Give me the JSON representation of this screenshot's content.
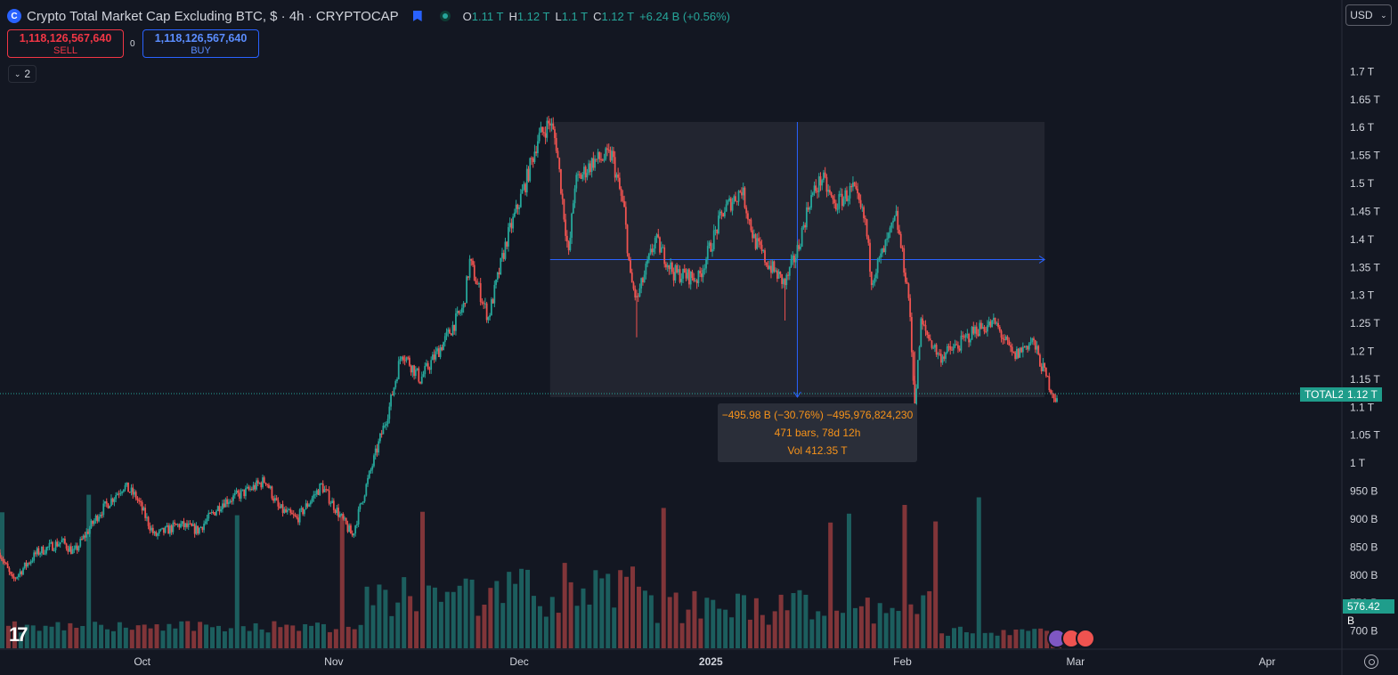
{
  "header": {
    "title": "Crypto Total Market Cap Excluding BTC, $ · 4h · CRYPTOCAP",
    "symbol_icon": "cryptocap-logo-icon",
    "ohlc": [
      {
        "key": "O",
        "value": "1.11 T"
      },
      {
        "key": "H",
        "value": "1.12 T"
      },
      {
        "key": "L",
        "value": "1.1 T"
      },
      {
        "key": "C",
        "value": "1.12 T"
      }
    ],
    "change": "+6.24 B (+0.56%)"
  },
  "trade": {
    "sell_price": "1,118,126,567,640",
    "sell_label": "SELL",
    "spread": "0",
    "buy_price": "1,118,126,567,640",
    "buy_label": "BUY"
  },
  "indicators_toggle": {
    "count": "2"
  },
  "currency": "USD",
  "measure": {
    "line1": "−495.98 B (−30.76%) −495,976,824,230",
    "line2": "471 bars, 78d 12h",
    "line3": "Vol 412.35 T"
  },
  "price_tag": {
    "symbol": "TOTAL2",
    "value": "1.12 T"
  },
  "volume_tag": "576.42 B",
  "colors": {
    "up": "#26a69a",
    "down": "#ef5350",
    "accent": "#2962ff",
    "measure_text": "#f7931a"
  },
  "chart_data": {
    "type": "candlestick",
    "title": "Crypto Total Market Cap Excluding BTC",
    "interval": "4h",
    "x_ticks": [
      "Oct",
      "Nov",
      "Dec",
      "2025",
      "Feb",
      "Mar",
      "Apr"
    ],
    "y_ticks": [
      "1.7 T",
      "1.65 T",
      "1.6 T",
      "1.55 T",
      "1.5 T",
      "1.45 T",
      "1.4 T",
      "1.35 T",
      "1.3 T",
      "1.25 T",
      "1.2 T",
      "1.15 T",
      "1.1 T",
      "1.05 T",
      "1 T",
      "950 B",
      "900 B",
      "850 B",
      "800 B",
      "750 B",
      "700 B"
    ],
    "y_range_T": [
      0.685,
      1.75
    ],
    "date_range": [
      "2024-09-08",
      "2025-02-26"
    ],
    "price_path": [
      {
        "date": "2024-09-08",
        "close": 0.84
      },
      {
        "date": "2024-09-10",
        "close": 0.79
      },
      {
        "date": "2024-09-14",
        "close": 0.84
      },
      {
        "date": "2024-09-18",
        "close": 0.86
      },
      {
        "date": "2024-09-20",
        "close": 0.84
      },
      {
        "date": "2024-09-24",
        "close": 0.91
      },
      {
        "date": "2024-09-28",
        "close": 0.96
      },
      {
        "date": "2024-09-30",
        "close": 0.94
      },
      {
        "date": "2024-10-03",
        "close": 0.87
      },
      {
        "date": "2024-10-07",
        "close": 0.89
      },
      {
        "date": "2024-10-10",
        "close": 0.88
      },
      {
        "date": "2024-10-14",
        "close": 0.93
      },
      {
        "date": "2024-10-18",
        "close": 0.95
      },
      {
        "date": "2024-10-21",
        "close": 0.97
      },
      {
        "date": "2024-10-23",
        "close": 0.92
      },
      {
        "date": "2024-10-26",
        "close": 0.9
      },
      {
        "date": "2024-10-30",
        "close": 0.96
      },
      {
        "date": "2024-11-04",
        "close": 0.87
      },
      {
        "date": "2024-11-06",
        "close": 0.95
      },
      {
        "date": "2024-11-10",
        "close": 1.1
      },
      {
        "date": "2024-11-12",
        "close": 1.2
      },
      {
        "date": "2024-11-15",
        "close": 1.15
      },
      {
        "date": "2024-11-19",
        "close": 1.22
      },
      {
        "date": "2024-11-22",
        "close": 1.28
      },
      {
        "date": "2024-11-23",
        "close": 1.36
      },
      {
        "date": "2024-11-26",
        "close": 1.26
      },
      {
        "date": "2024-11-29",
        "close": 1.4
      },
      {
        "date": "2024-12-02",
        "close": 1.5
      },
      {
        "date": "2024-12-04",
        "close": 1.58
      },
      {
        "date": "2024-12-06",
        "close": 1.61
      },
      {
        "date": "2024-12-07",
        "close": 1.57
      },
      {
        "date": "2024-12-09",
        "close": 1.37
      },
      {
        "date": "2024-12-10",
        "close": 1.5
      },
      {
        "date": "2024-12-13",
        "close": 1.54
      },
      {
        "date": "2024-12-16",
        "close": 1.55
      },
      {
        "date": "2024-12-18",
        "close": 1.45
      },
      {
        "date": "2024-12-19",
        "close": 1.33
      },
      {
        "date": "2024-12-20",
        "close": 1.29
      },
      {
        "date": "2024-12-23",
        "close": 1.4
      },
      {
        "date": "2024-12-26",
        "close": 1.34
      },
      {
        "date": "2024-12-30",
        "close": 1.33
      },
      {
        "date": "2025-01-03",
        "close": 1.45
      },
      {
        "date": "2025-01-06",
        "close": 1.49
      },
      {
        "date": "2025-01-08",
        "close": 1.4
      },
      {
        "date": "2025-01-10",
        "close": 1.36
      },
      {
        "date": "2025-01-13",
        "close": 1.32
      },
      {
        "date": "2025-01-15",
        "close": 1.38
      },
      {
        "date": "2025-01-17",
        "close": 1.47
      },
      {
        "date": "2025-01-19",
        "close": 1.51
      },
      {
        "date": "2025-01-21",
        "close": 1.46
      },
      {
        "date": "2025-01-24",
        "close": 1.49
      },
      {
        "date": "2025-01-26",
        "close": 1.43
      },
      {
        "date": "2025-01-27",
        "close": 1.33
      },
      {
        "date": "2025-01-29",
        "close": 1.38
      },
      {
        "date": "2025-01-31",
        "close": 1.44
      },
      {
        "date": "2025-02-02",
        "close": 1.3
      },
      {
        "date": "2025-02-03",
        "close": 1.1
      },
      {
        "date": "2025-02-04",
        "close": 1.25
      },
      {
        "date": "2025-02-07",
        "close": 1.19
      },
      {
        "date": "2025-02-10",
        "close": 1.21
      },
      {
        "date": "2025-02-13",
        "close": 1.24
      },
      {
        "date": "2025-02-16",
        "close": 1.25
      },
      {
        "date": "2025-02-19",
        "close": 1.19
      },
      {
        "date": "2025-02-22",
        "close": 1.22
      },
      {
        "date": "2025-02-24",
        "close": 1.16
      },
      {
        "date": "2025-02-26",
        "close": 1.11
      }
    ],
    "measure_range": {
      "from_date": "2024-12-06",
      "to_date": "2025-02-24",
      "price_from_T": 1.61,
      "price_to_T": 1.118,
      "change": "−495.98 B",
      "percent": "−30.76%"
    },
    "current_price_T": 1.118,
    "volume_range_B": [
      0,
      412
    ],
    "volume_last": "576.42 B"
  }
}
